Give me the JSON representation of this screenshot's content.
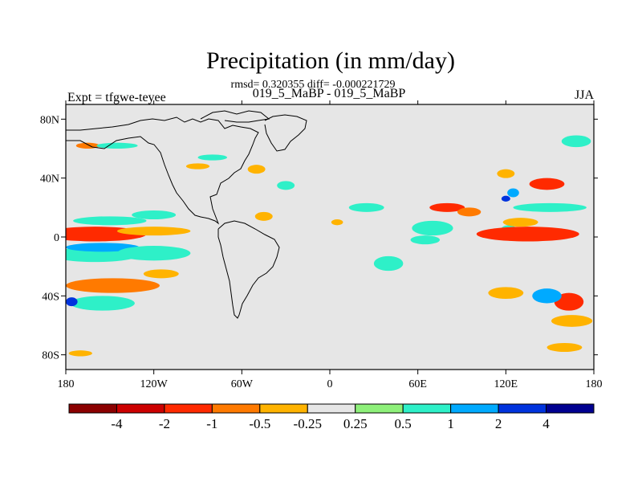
{
  "chart_data": {
    "type": "heatmap",
    "title": "Precipitation (in mm/day)",
    "subtitle_stats": "rmsd= 0.320355 diff= -0.000221729",
    "subtitle_runs": "019_5_MaBP - 019_5_MaBP",
    "left_label": "Expt = tfgwe-teyee",
    "right_label": "JJA",
    "x_range": [
      -180,
      180
    ],
    "y_range": [
      -90,
      90
    ],
    "x_ticks": [
      {
        "value": -180,
        "label": "180"
      },
      {
        "value": -120,
        "label": "120W"
      },
      {
        "value": -60,
        "label": "60W"
      },
      {
        "value": 0,
        "label": "0"
      },
      {
        "value": 60,
        "label": "60E"
      },
      {
        "value": 120,
        "label": "120E"
      },
      {
        "value": 180,
        "label": "180"
      }
    ],
    "y_ticks": [
      {
        "value": 80,
        "label": "80N"
      },
      {
        "value": 40,
        "label": "40N"
      },
      {
        "value": 0,
        "label": "0"
      },
      {
        "value": -40,
        "label": "40S"
      },
      {
        "value": -80,
        "label": "80S"
      }
    ],
    "background_color": "#e6e6e6",
    "coastline_color": "#000000",
    "colorbar": {
      "colors": [
        "#8b0000",
        "#cc0000",
        "#ff2a00",
        "#ff7a00",
        "#ffb300",
        "#e6e6e6",
        "#8ef07a",
        "#2ef0c8",
        "#00aaff",
        "#0033dd",
        "#000090"
      ],
      "labels": [
        "-4",
        "-2",
        "-1",
        "-0.5",
        "-0.25",
        "0.25",
        "0.5",
        "1",
        "2",
        "4"
      ]
    },
    "field_anomalies": [
      {
        "lon": -160,
        "lat": 2,
        "rlon": 35,
        "rlat": 5,
        "value": -1.5
      },
      {
        "lon": -120,
        "lat": 4,
        "rlon": 25,
        "rlat": 3,
        "value": -0.5
      },
      {
        "lon": -150,
        "lat": 11,
        "rlon": 25,
        "rlat": 3,
        "value": 0.5
      },
      {
        "lon": -120,
        "lat": 15,
        "rlon": 15,
        "rlat": 3,
        "value": 0.5
      },
      {
        "lon": -160,
        "lat": -12,
        "rlon": 30,
        "rlat": 5,
        "value": 0.7
      },
      {
        "lon": -155,
        "lat": -7,
        "rlon": 25,
        "rlat": 3,
        "value": 1.5
      },
      {
        "lon": -120,
        "lat": -11,
        "rlon": 25,
        "rlat": 5,
        "value": 0.5
      },
      {
        "lon": -148,
        "lat": -33,
        "rlon": 32,
        "rlat": 5,
        "value": -0.8
      },
      {
        "lon": -115,
        "lat": -25,
        "rlon": 12,
        "rlat": 3,
        "value": -0.5
      },
      {
        "lon": -155,
        "lat": -45,
        "rlon": 22,
        "rlat": 5,
        "value": 0.7
      },
      {
        "lon": -176,
        "lat": -44,
        "rlon": 4,
        "rlat": 3,
        "value": 2.5
      },
      {
        "lon": -170,
        "lat": -79,
        "rlon": 8,
        "rlat": 2,
        "value": -0.4
      },
      {
        "lon": -45,
        "lat": 14,
        "rlon": 6,
        "rlat": 3,
        "value": -0.5
      },
      {
        "lon": -50,
        "lat": 46,
        "rlon": 6,
        "rlat": 3,
        "value": -0.3
      },
      {
        "lon": 5,
        "lat": 10,
        "rlon": 4,
        "rlat": 2,
        "value": -0.3
      },
      {
        "lon": 25,
        "lat": 20,
        "rlon": 12,
        "rlat": 3,
        "value": 0.5
      },
      {
        "lon": 40,
        "lat": -18,
        "rlon": 10,
        "rlat": 5,
        "value": 0.5
      },
      {
        "lon": 70,
        "lat": 6,
        "rlon": 14,
        "rlat": 5,
        "value": 0.6
      },
      {
        "lon": 65,
        "lat": -2,
        "rlon": 10,
        "rlat": 3,
        "value": 0.5
      },
      {
        "lon": 80,
        "lat": 20,
        "rlon": 12,
        "rlat": 3,
        "value": -1.2
      },
      {
        "lon": 95,
        "lat": 17,
        "rlon": 8,
        "rlat": 3,
        "value": -0.8
      },
      {
        "lon": 122,
        "lat": 4,
        "rlon": 6,
        "rlat": 4,
        "value": 0.5
      },
      {
        "lon": 135,
        "lat": 2,
        "rlon": 35,
        "rlat": 5,
        "value": -1.2
      },
      {
        "lon": 130,
        "lat": 10,
        "rlon": 12,
        "rlat": 3,
        "value": -0.4
      },
      {
        "lon": 150,
        "lat": 20,
        "rlon": 25,
        "rlat": 3,
        "value": 0.5
      },
      {
        "lon": 120,
        "lat": 26,
        "rlon": 3,
        "rlat": 2,
        "value": 2.5
      },
      {
        "lon": 125,
        "lat": 30,
        "rlon": 4,
        "rlat": 3,
        "value": 1
      },
      {
        "lon": 120,
        "lat": 43,
        "rlon": 6,
        "rlat": 3,
        "value": -0.4
      },
      {
        "lon": 148,
        "lat": 36,
        "rlon": 12,
        "rlat": 4,
        "value": -1.2
      },
      {
        "lon": 163,
        "lat": -44,
        "rlon": 10,
        "rlat": 6,
        "value": -1.2
      },
      {
        "lon": 165,
        "lat": -57,
        "rlon": 14,
        "rlat": 4,
        "value": -0.5
      },
      {
        "lon": 148,
        "lat": -40,
        "rlon": 10,
        "rlat": 5,
        "value": 1
      },
      {
        "lon": 120,
        "lat": -38,
        "rlon": 12,
        "rlat": 4,
        "value": -0.4
      },
      {
        "lon": 160,
        "lat": -75,
        "rlon": 12,
        "rlat": 3,
        "value": -0.5
      },
      {
        "lon": 168,
        "lat": 65,
        "rlon": 10,
        "rlat": 4,
        "value": 0.5
      },
      {
        "lon": -165,
        "lat": 62,
        "rlon": 8,
        "rlat": 2,
        "value": -0.6
      },
      {
        "lon": -145,
        "lat": 62,
        "rlon": 14,
        "rlat": 2,
        "value": 0.5
      },
      {
        "lon": -90,
        "lat": 48,
        "rlon": 8,
        "rlat": 2,
        "value": -0.4
      },
      {
        "lon": -80,
        "lat": 54,
        "rlon": 10,
        "rlat": 2,
        "value": 0.5
      },
      {
        "lon": -30,
        "lat": 35,
        "rlon": 6,
        "rlat": 3,
        "value": 0.5
      }
    ]
  }
}
